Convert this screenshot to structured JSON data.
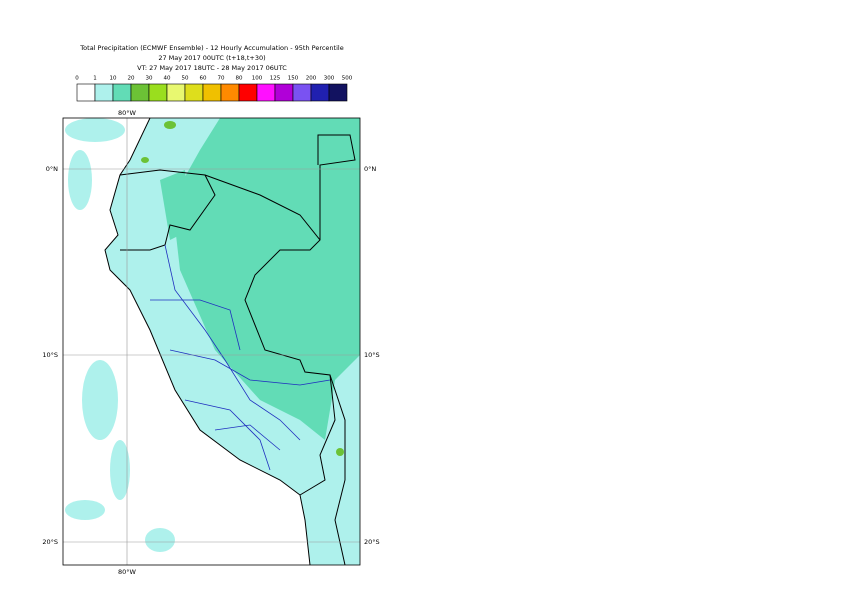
{
  "header": {
    "title": [
      "Total Precipitation (ECMWF Ensemble) - 12 Hourly Accumulation - 95th Percentile",
      "27 May 2017 00UTC (t+18,t+30)",
      "VT: 27 May 2017 18UTC - 28 May 2017 06UTC"
    ]
  },
  "legend": {
    "levels": [
      0,
      1,
      10,
      20,
      30,
      40,
      50,
      60,
      70,
      80,
      100,
      125,
      150,
      200,
      300,
      500
    ],
    "colors": [
      "#ffffff",
      "#aef1ec",
      "#62dcb6",
      "#6cc236",
      "#9ade1e",
      "#e8f870",
      "#dede1c",
      "#f0c000",
      "#ff8a00",
      "#ff0000",
      "#ff10ff",
      "#b000d8",
      "#7a52f2",
      "#2020b0",
      "#121260"
    ]
  },
  "map": {
    "lat_labels": [
      "0°N",
      "10°S",
      "20°S"
    ],
    "lon_labels": [
      "80°W"
    ]
  }
}
